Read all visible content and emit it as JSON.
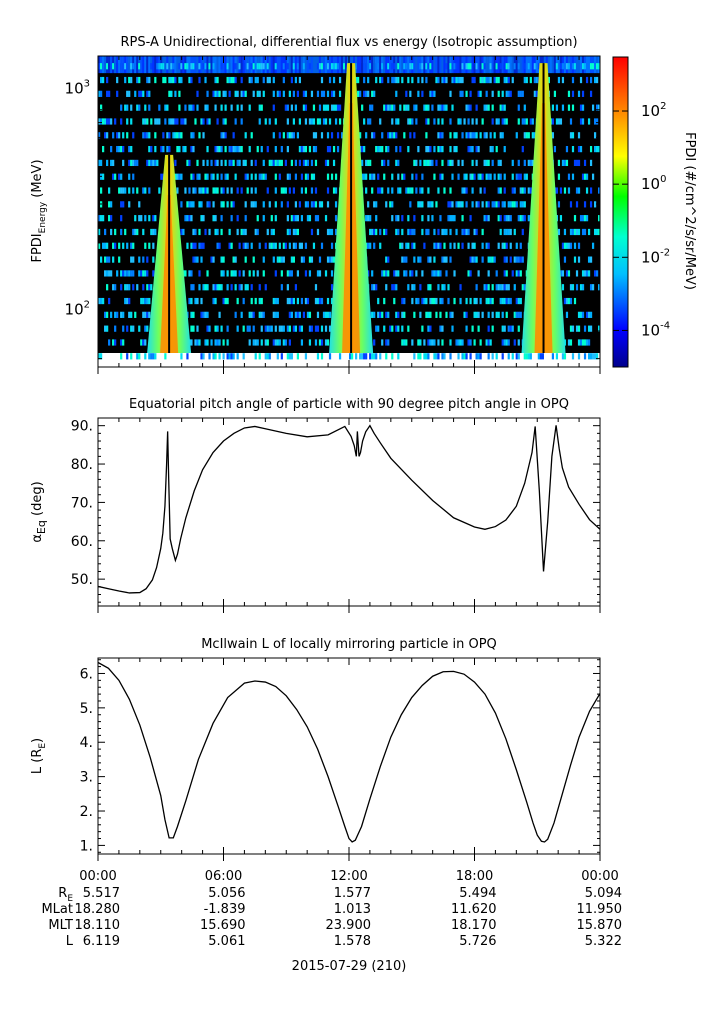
{
  "panels": {
    "spectrogram": {
      "title": "RPS-A Unidirectional, differential flux vs energy (Isotropic assumption)",
      "ylabel_main": "FPDI",
      "ylabel_sub": "Energy",
      "ylabel_unit": " (MeV)",
      "yticks": [
        {
          "base": "10",
          "exp": "3"
        },
        {
          "base": "10",
          "exp": "2"
        }
      ],
      "colorbar": {
        "label": "FPDI (#/cm^2/s/sr/MeV)",
        "ticks": [
          {
            "base": "10",
            "exp": "2"
          },
          {
            "base": "10",
            "exp": "0"
          },
          {
            "base": "10",
            "exp": "-2"
          },
          {
            "base": "10",
            "exp": "-4"
          }
        ]
      }
    },
    "pitch": {
      "title": "Equatorial pitch angle of particle with 90 degree pitch angle in OPQ",
      "ylabel": "α",
      "ylabel_sub": "Eq",
      "ylabel_unit": " (deg)"
    },
    "lshell": {
      "title": "McIlwain L of locally mirroring particle in OPQ",
      "ylabel": "L (R",
      "ylabel_sub": "E",
      "ylabel_close": ")"
    }
  },
  "chart_data": [
    {
      "type": "heatmap",
      "title": "RPS-A Unidirectional, differential flux vs energy (Isotropic assumption)",
      "ylabel": "FPDI Energy (MeV)",
      "yscale": "log",
      "ylim": [
        55,
        1400
      ],
      "xlim": [
        0,
        24
      ],
      "x_unit": "hours since 2015-07-29 00:00",
      "colorbar_label": "FPDI (#/cm^2/s/sr/MeV)",
      "colorbar_scale": "log",
      "colorbar_range": [
        1e-05,
        3000
      ],
      "colormap": "rainbow",
      "flux_peaks": [
        {
          "center_hour": 3.4,
          "max_energy_MeV": 500
        },
        {
          "center_hour": 12.1,
          "max_energy_MeV": 1300
        },
        {
          "center_hour": 21.3,
          "max_energy_MeV": 1300
        }
      ]
    },
    {
      "type": "line",
      "title": "Equatorial pitch angle of particle with 90 degree pitch angle in OPQ",
      "ylabel": "αEq (deg)",
      "ylim": [
        43,
        92
      ],
      "xlim": [
        0,
        24
      ],
      "yticks": [
        50,
        60,
        70,
        80,
        90
      ],
      "series": [
        {
          "x": [
            0,
            0.5,
            1,
            1.5,
            2,
            2.3,
            2.6,
            2.8,
            3.0,
            3.1,
            3.2,
            3.28,
            3.33,
            3.38,
            3.45,
            3.55,
            3.7,
            3.8,
            3.95,
            4.2,
            4.6,
            5.0,
            5.5,
            6.0,
            6.5,
            7.0,
            7.5,
            8.0,
            9.0,
            10.0,
            11.0,
            11.8,
            12.1,
            12.25,
            12.35,
            12.4,
            12.48,
            12.55,
            12.65,
            12.8,
            13.0,
            13.2,
            13.5,
            14.0,
            15.0,
            16.0,
            17.0,
            18.0,
            18.5,
            19.0,
            19.5,
            20.0,
            20.4,
            20.75,
            20.9,
            21.1,
            21.3,
            21.5,
            21.7,
            21.9,
            22.05,
            22.2,
            22.5,
            23.0,
            23.5,
            24.0
          ],
          "y": [
            48.1,
            47.5,
            46.9,
            46.4,
            46.5,
            47.5,
            49.8,
            53,
            58,
            62,
            69,
            80,
            88.5,
            76,
            60.5,
            58,
            54.9,
            56.5,
            60.5,
            66,
            73,
            78.5,
            83,
            86,
            88,
            89.4,
            89.8,
            89.2,
            88,
            87.1,
            87.6,
            89.8,
            87.2,
            84.8,
            82,
            88.5,
            82,
            83,
            86,
            88.4,
            90,
            88,
            85.5,
            81.5,
            75.8,
            70.5,
            66,
            63.6,
            63,
            63.7,
            65.4,
            69,
            75,
            83,
            89.8,
            73,
            52,
            65,
            82,
            90.1,
            84,
            79,
            74,
            69.5,
            65.5,
            63
          ]
        }
      ]
    },
    {
      "type": "line",
      "title": "McIlwain L of locally mirroring particle in OPQ",
      "ylabel": "L (RE)",
      "ylim": [
        0.75,
        6.45
      ],
      "xlim": [
        0,
        24
      ],
      "yticks": [
        1,
        2,
        3,
        4,
        5,
        6
      ],
      "series": [
        {
          "x": [
            0,
            0.5,
            1,
            1.5,
            2,
            2.5,
            3.0,
            3.2,
            3.4,
            3.6,
            3.8,
            4.2,
            4.8,
            5.5,
            6.2,
            7.0,
            7.5,
            8.0,
            8.5,
            9.0,
            9.5,
            10.0,
            10.5,
            11.0,
            11.5,
            11.8,
            12.0,
            12.15,
            12.3,
            12.6,
            13.0,
            13.5,
            14.0,
            14.5,
            15.0,
            15.5,
            16.0,
            16.5,
            17.0,
            17.5,
            18.0,
            18.5,
            19.0,
            19.5,
            20.0,
            20.5,
            20.8,
            21.0,
            21.2,
            21.35,
            21.5,
            21.8,
            22.2,
            22.6,
            23.0,
            23.5,
            24.0
          ],
          "y": [
            6.32,
            6.15,
            5.8,
            5.25,
            4.5,
            3.55,
            2.45,
            1.75,
            1.22,
            1.22,
            1.55,
            2.3,
            3.5,
            4.55,
            5.3,
            5.72,
            5.78,
            5.75,
            5.62,
            5.35,
            4.95,
            4.45,
            3.8,
            3.0,
            2.1,
            1.55,
            1.2,
            1.1,
            1.15,
            1.55,
            2.35,
            3.3,
            4.15,
            4.8,
            5.3,
            5.65,
            5.92,
            6.05,
            6.06,
            5.98,
            5.75,
            5.4,
            4.85,
            4.1,
            3.2,
            2.25,
            1.65,
            1.3,
            1.12,
            1.1,
            1.18,
            1.65,
            2.5,
            3.35,
            4.15,
            4.9,
            5.42
          ]
        }
      ]
    }
  ],
  "xaxis": {
    "tick_labels": [
      "00:00",
      "06:00",
      "12:00",
      "18:00",
      "00:00"
    ],
    "row_labels": [
      "RE",
      "MLat",
      "MLT",
      "L"
    ],
    "rows": [
      [
        "5.517",
        "5.056",
        "1.577",
        "5.494",
        "5.094"
      ],
      [
        "18.280",
        "-1.839",
        "1.013",
        "11.620",
        "11.950"
      ],
      [
        "18.110",
        "15.690",
        "23.900",
        "18.170",
        "15.870"
      ],
      [
        "6.119",
        "5.061",
        "1.578",
        "5.726",
        "5.322"
      ]
    ],
    "date_label": "2015-07-29 (210)"
  }
}
